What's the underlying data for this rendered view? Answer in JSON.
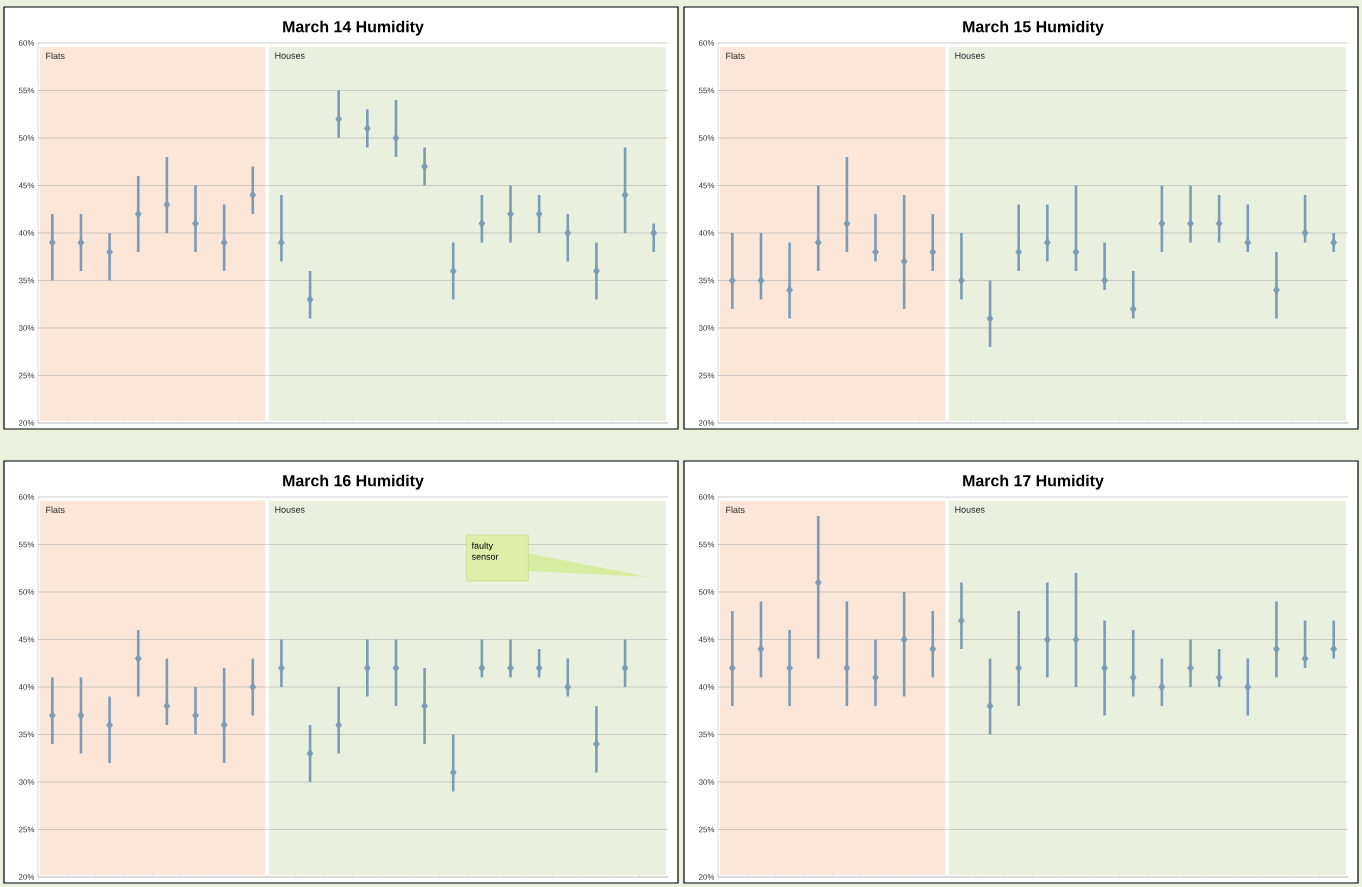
{
  "chart_data": [
    {
      "type": "scatter",
      "title": "March 14 Humidity",
      "categories": [
        null,
        null,
        null,
        null,
        null,
        null,
        null,
        null,
        null,
        null,
        null,
        null,
        null,
        null,
        null,
        null,
        null,
        null,
        null,
        null,
        null,
        null
      ],
      "ylim": [
        20,
        60
      ],
      "yticks": [
        {
          "value": 20,
          "label": "20%"
        },
        {
          "value": 25,
          "label": "25%"
        },
        {
          "value": 30,
          "label": "30%"
        },
        {
          "value": 35,
          "label": "35%"
        },
        {
          "value": 40,
          "label": "40%"
        },
        {
          "value": 45,
          "label": "45%"
        },
        {
          "value": 50,
          "label": "50%"
        },
        {
          "value": 55,
          "label": "55%"
        },
        {
          "value": 60,
          "label": "60%"
        }
      ],
      "grid": "y",
      "marker": "diamond",
      "color": "#7a9cb8",
      "values": [
        39,
        39,
        38,
        42,
        43,
        41,
        39,
        44,
        39,
        33,
        52,
        51,
        50,
        47,
        36,
        41,
        42,
        42,
        40,
        36,
        44,
        40
      ],
      "errors": [
        [
          35,
          42
        ],
        [
          36,
          42
        ],
        [
          35,
          40
        ],
        [
          38,
          46
        ],
        [
          40,
          48
        ],
        [
          38,
          45
        ],
        [
          36,
          43
        ],
        [
          42,
          47
        ],
        [
          37,
          44
        ],
        [
          31,
          36
        ],
        [
          50,
          55
        ],
        [
          49,
          53
        ],
        [
          48,
          54
        ],
        [
          45,
          49
        ],
        [
          33,
          39
        ],
        [
          39,
          44
        ],
        [
          39,
          45
        ],
        [
          40,
          44
        ],
        [
          37,
          42
        ],
        [
          33,
          39
        ],
        [
          40,
          49
        ],
        [
          38,
          41
        ]
      ],
      "annotations": [
        "Flats",
        "Houses"
      ]
    },
    {
      "type": "scatter",
      "title": "March 15 Humidity",
      "categories": [
        null,
        null,
        null,
        null,
        null,
        null,
        null,
        null,
        null,
        null,
        null,
        null,
        null,
        null,
        null,
        null,
        null,
        null,
        null,
        null,
        null,
        null
      ],
      "ylim": [
        20,
        60
      ],
      "yticks": [
        {
          "value": 20,
          "label": "20%"
        },
        {
          "value": 25,
          "label": "25%"
        },
        {
          "value": 30,
          "label": "30%"
        },
        {
          "value": 35,
          "label": "35%"
        },
        {
          "value": 40,
          "label": "40%"
        },
        {
          "value": 45,
          "label": "45%"
        },
        {
          "value": 50,
          "label": "50%"
        },
        {
          "value": 55,
          "label": "55%"
        },
        {
          "value": 60,
          "label": "60%"
        }
      ],
      "grid": "y",
      "marker": "diamond",
      "color": "#7a9cb8",
      "values": [
        35,
        35,
        34,
        39,
        41,
        38,
        37,
        38,
        35,
        31,
        38,
        39,
        38,
        35,
        32,
        41,
        41,
        41,
        39,
        34,
        40,
        39
      ],
      "errors": [
        [
          32,
          40
        ],
        [
          33,
          40
        ],
        [
          31,
          39
        ],
        [
          36,
          45
        ],
        [
          38,
          48
        ],
        [
          37,
          42
        ],
        [
          32,
          44
        ],
        [
          36,
          42
        ],
        [
          33,
          40
        ],
        [
          28,
          35
        ],
        [
          36,
          43
        ],
        [
          37,
          43
        ],
        [
          36,
          45
        ],
        [
          34,
          39
        ],
        [
          31,
          36
        ],
        [
          38,
          45
        ],
        [
          39,
          45
        ],
        [
          39,
          44
        ],
        [
          38,
          43
        ],
        [
          31,
          38
        ],
        [
          39,
          44
        ],
        [
          38,
          40
        ]
      ],
      "annotations": [
        "Flats",
        "Houses"
      ]
    },
    {
      "type": "scatter",
      "title": "March 16 Humidity",
      "categories": [
        null,
        null,
        null,
        null,
        null,
        null,
        null,
        null,
        null,
        null,
        null,
        null,
        null,
        null,
        null,
        null,
        null,
        null,
        null,
        null,
        null,
        null
      ],
      "ylim": [
        20,
        60
      ],
      "yticks": [
        {
          "value": 20,
          "label": "20%"
        },
        {
          "value": 25,
          "label": "25%"
        },
        {
          "value": 30,
          "label": "30%"
        },
        {
          "value": 35,
          "label": "35%"
        },
        {
          "value": 40,
          "label": "40%"
        },
        {
          "value": 45,
          "label": "45%"
        },
        {
          "value": 50,
          "label": "50%"
        },
        {
          "value": 55,
          "label": "55%"
        },
        {
          "value": 60,
          "label": "60%"
        }
      ],
      "grid": "y",
      "marker": "diamond",
      "color": "#7a9cb8",
      "values": [
        37,
        37,
        36,
        43,
        38,
        37,
        36,
        40,
        42,
        33,
        36,
        42,
        42,
        38,
        31,
        42,
        42,
        42,
        40,
        34,
        42,
        null
      ],
      "errors": [
        [
          34,
          41
        ],
        [
          33,
          41
        ],
        [
          32,
          39
        ],
        [
          39,
          46
        ],
        [
          36,
          43
        ],
        [
          35,
          40
        ],
        [
          32,
          42
        ],
        [
          37,
          43
        ],
        [
          40,
          45
        ],
        [
          30,
          36
        ],
        [
          33,
          40
        ],
        [
          39,
          45
        ],
        [
          38,
          45
        ],
        [
          34,
          42
        ],
        [
          29,
          35
        ],
        [
          41,
          45
        ],
        [
          41,
          45
        ],
        [
          41,
          44
        ],
        [
          39,
          43
        ],
        [
          31,
          38
        ],
        [
          40,
          45
        ],
        null
      ],
      "annotations": [
        "Flats",
        "Houses",
        "faulty sensor"
      ]
    },
    {
      "type": "scatter",
      "title": "March 17 Humidity",
      "categories": [
        null,
        null,
        null,
        null,
        null,
        null,
        null,
        null,
        null,
        null,
        null,
        null,
        null,
        null,
        null,
        null,
        null,
        null,
        null,
        null,
        null,
        null
      ],
      "ylim": [
        20,
        60
      ],
      "yticks": [
        {
          "value": 20,
          "label": "20%"
        },
        {
          "value": 25,
          "label": "25%"
        },
        {
          "value": 30,
          "label": "30%"
        },
        {
          "value": 35,
          "label": "35%"
        },
        {
          "value": 40,
          "label": "40%"
        },
        {
          "value": 45,
          "label": "45%"
        },
        {
          "value": 50,
          "label": "50%"
        },
        {
          "value": 55,
          "label": "55%"
        },
        {
          "value": 60,
          "label": "60%"
        }
      ],
      "grid": "y",
      "marker": "diamond",
      "color": "#7a9cb8",
      "values": [
        42,
        44,
        42,
        51,
        42,
        41,
        45,
        44,
        47,
        38,
        42,
        45,
        45,
        42,
        41,
        40,
        42,
        41,
        40,
        44,
        43,
        44
      ],
      "errors": [
        [
          38,
          48
        ],
        [
          41,
          49
        ],
        [
          38,
          46
        ],
        [
          43,
          58
        ],
        [
          38,
          49
        ],
        [
          38,
          45
        ],
        [
          39,
          50
        ],
        [
          41,
          48
        ],
        [
          44,
          51
        ],
        [
          35,
          43
        ],
        [
          38,
          48
        ],
        [
          41,
          51
        ],
        [
          40,
          52
        ],
        [
          37,
          47
        ],
        [
          39,
          46
        ],
        [
          38,
          43
        ],
        [
          40,
          45
        ],
        [
          40,
          44
        ],
        [
          37,
          43
        ],
        [
          41,
          49
        ],
        [
          42,
          47
        ],
        [
          43,
          47
        ]
      ],
      "annotations": [
        "Flats",
        "Houses"
      ]
    }
  ]
}
